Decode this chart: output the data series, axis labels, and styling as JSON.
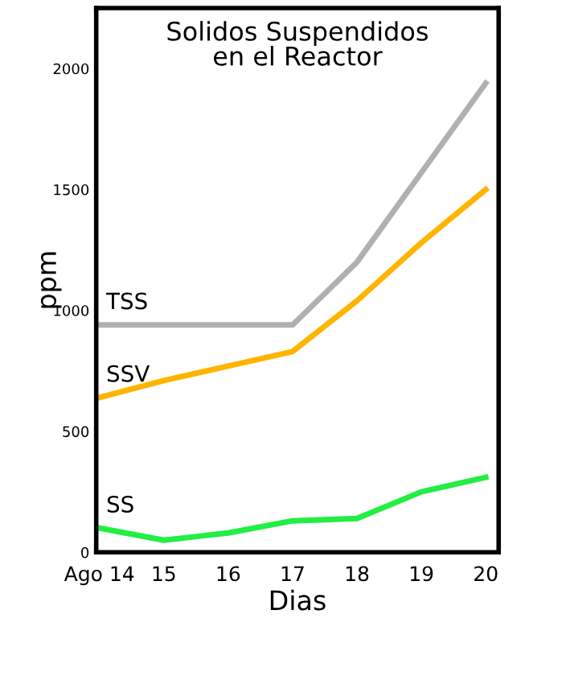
{
  "chart_data": {
    "type": "line",
    "title": "Solidos Suspendidos\nen el Reactor",
    "xlabel": "Dias",
    "ylabel": "ppm",
    "x": [
      14,
      15,
      16,
      17,
      18,
      19,
      20
    ],
    "series": [
      {
        "name": "TSS",
        "color": "#b0b0b0",
        "values": [
          940,
          940,
          940,
          940,
          1200,
          1570,
          1940
        ]
      },
      {
        "name": "SSV",
        "color": "#ffb400",
        "values": [
          640,
          710,
          770,
          830,
          1040,
          1280,
          1500
        ]
      },
      {
        "name": "SS",
        "color": "#22ee44",
        "values": [
          100,
          50,
          80,
          130,
          140,
          250,
          310
        ]
      }
    ],
    "xlim": [
      13.95,
      20.2
    ],
    "xticks": [
      {
        "value": 14,
        "label": "Ago 14"
      },
      15,
      16,
      17,
      18,
      19,
      20
    ],
    "ylim": [
      0,
      2250
    ],
    "yticks": [
      0,
      500,
      1000,
      1500,
      2000
    ],
    "grid": false,
    "legend": false,
    "marker": "none",
    "line_style": "solid"
  }
}
